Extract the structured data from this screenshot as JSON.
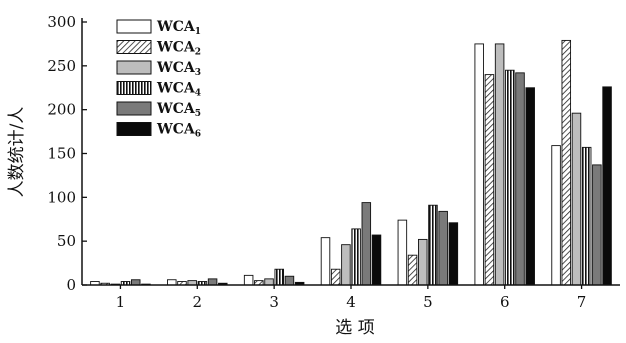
{
  "chart_data": {
    "type": "bar",
    "title": "",
    "xlabel": "选 项",
    "ylabel": "人数统计/人",
    "categories": [
      "1",
      "2",
      "3",
      "4",
      "5",
      "6",
      "7"
    ],
    "ylim": [
      0,
      300
    ],
    "yticks": [
      "0",
      "50",
      "100",
      "150",
      "200",
      "250",
      "300"
    ],
    "grid": false,
    "legend_position": "top-left",
    "series": [
      {
        "name": "WCA",
        "sub": "1",
        "pattern": "white",
        "values": [
          4,
          6,
          11,
          54,
          74,
          275,
          159
        ]
      },
      {
        "name": "WCA",
        "sub": "2",
        "pattern": "hatch",
        "values": [
          2,
          4,
          5,
          18,
          34,
          240,
          279
        ]
      },
      {
        "name": "WCA",
        "sub": "3",
        "pattern": "lightgray",
        "values": [
          1,
          5,
          7,
          46,
          52,
          275,
          196
        ]
      },
      {
        "name": "WCA",
        "sub": "4",
        "pattern": "vstripe",
        "values": [
          4,
          4,
          18,
          64,
          91,
          245,
          157
        ]
      },
      {
        "name": "WCA",
        "sub": "5",
        "pattern": "darkgray",
        "values": [
          6,
          7,
          10,
          94,
          84,
          242,
          137
        ]
      },
      {
        "name": "WCA",
        "sub": "6",
        "pattern": "black",
        "values": [
          1,
          2,
          3,
          57,
          71,
          225,
          226
        ]
      }
    ]
  }
}
